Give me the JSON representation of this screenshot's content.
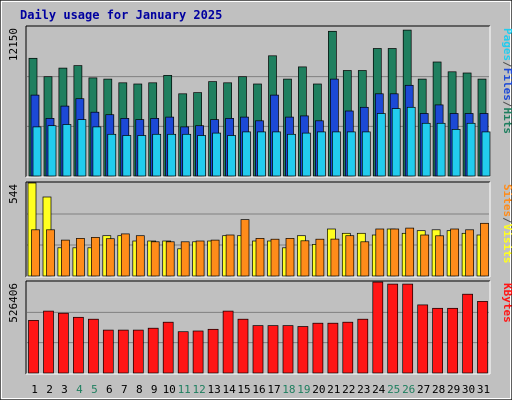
{
  "chart_data": {
    "title": "Daily usage for January 2025",
    "days": [
      "1",
      "2",
      "3",
      "4",
      "5",
      "6",
      "7",
      "8",
      "9",
      "10",
      "11",
      "12",
      "13",
      "14",
      "15",
      "16",
      "17",
      "18",
      "19",
      "20",
      "21",
      "22",
      "23",
      "24",
      "25",
      "26",
      "27",
      "28",
      "29",
      "30",
      "31"
    ],
    "weekend_days": [
      4,
      5,
      11,
      12,
      18,
      19,
      25,
      26
    ],
    "colors": {
      "title": "#0000a0",
      "background": "#c0c0c0",
      "hits": "#1f7f5f",
      "files": "#1c49d6",
      "pages": "#22ccee",
      "visits": "#ffff20",
      "sites": "#ff8c1a",
      "kbytes": "#ff1515",
      "weekend_label": "#1f7f5f"
    },
    "panels": [
      {
        "type": "bar",
        "axis_label": "12150",
        "ymax": 12150,
        "legend": [
          "Pages",
          "/",
          "Files",
          "/",
          "Hits"
        ],
        "legend_colors": [
          "#22ccee",
          "#505050",
          "#1c49d6",
          "#505050",
          "#1f7f5f"
        ],
        "series": [
          {
            "name": "Hits",
            "values": [
              9600,
              8100,
              8800,
              9000,
              8000,
              7900,
              7600,
              7500,
              7600,
              8200,
              6700,
              6800,
              7700,
              7600,
              8100,
              7500,
              9800,
              7900,
              8900,
              7500,
              11800,
              8600,
              8600,
              10400,
              10400,
              11900,
              7900,
              9300,
              8500,
              8400,
              7900
            ]
          },
          {
            "name": "Files",
            "values": [
              6600,
              4700,
              5700,
              6300,
              5200,
              5000,
              4700,
              4600,
              4700,
              4800,
              4000,
              4100,
              4600,
              4700,
              4800,
              4500,
              6600,
              4800,
              4900,
              4500,
              7900,
              5300,
              5600,
              6700,
              6700,
              7400,
              5100,
              5800,
              5100,
              5100,
              5100
            ]
          },
          {
            "name": "Pages",
            "values": [
              4000,
              4100,
              4200,
              4600,
              4000,
              3400,
              3300,
              3300,
              3400,
              3400,
              3400,
              3300,
              3500,
              3300,
              3600,
              3600,
              3600,
              3400,
              3500,
              3600,
              3600,
              3600,
              3600,
              5100,
              5500,
              5600,
              4300,
              4300,
              3800,
              4300,
              3600
            ]
          }
        ]
      },
      {
        "type": "bar",
        "axis_label": "544",
        "ymax": 544,
        "legend": [
          "Sites",
          "/",
          "Visits"
        ],
        "legend_colors": [
          "#ff8c1a",
          "#505050",
          "#ffff20"
        ],
        "series": [
          {
            "name": "Visits",
            "values": [
              544,
              462,
              165,
              165,
              165,
              236,
              236,
              205,
              205,
              205,
              159,
              200,
              205,
              236,
              236,
              205,
              205,
              165,
              236,
              185,
              275,
              250,
              250,
              240,
              275,
              250,
              265,
              270,
              265,
              250,
              240
            ]
          },
          {
            "name": "Sites",
            "values": [
              270,
              270,
              210,
              220,
              226,
              218,
              246,
              236,
              200,
              200,
              200,
              205,
              210,
              240,
              330,
              220,
              215,
              220,
              206,
              215,
              216,
              236,
              200,
              275,
              275,
              280,
              240,
              235,
              275,
              270,
              308
            ]
          }
        ]
      },
      {
        "type": "bar",
        "axis_label": "526406",
        "ymax": 526406,
        "legend": [
          "KBytes"
        ],
        "legend_colors": [
          "#ff1515"
        ],
        "series": [
          {
            "name": "KBytes",
            "values": [
              304000,
              358000,
              346000,
              322000,
              311000,
              248000,
              248000,
              248000,
              259000,
              294000,
              239000,
              243000,
              253000,
              358000,
              311000,
              274000,
              274000,
              274000,
              269000,
              288000,
              288000,
              294000,
              311000,
              526000,
              514000,
              514000,
              394000,
              374000,
              374000,
              456000,
              414000
            ]
          }
        ]
      }
    ]
  }
}
